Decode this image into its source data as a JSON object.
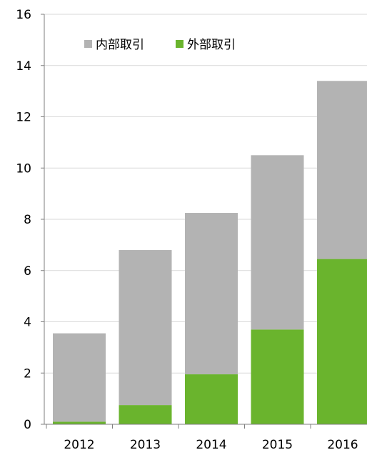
{
  "chart_data": {
    "type": "bar",
    "stacked": true,
    "categories": [
      "2012",
      "2013",
      "2014",
      "2015",
      "2016"
    ],
    "series": [
      {
        "name": "外部取引",
        "values": [
          0.1,
          0.75,
          1.95,
          3.7,
          6.45
        ]
      },
      {
        "name": "内部取引",
        "values": [
          3.45,
          6.05,
          6.3,
          6.8,
          6.95
        ]
      }
    ],
    "ylim": [
      0,
      16
    ],
    "yticks": [
      "0",
      "2",
      "4",
      "6",
      "8",
      "10",
      "12",
      "14",
      "16"
    ],
    "grid": true,
    "legend": "top-left",
    "colors": {
      "外部取引": "#6ab42d",
      "内部取引": "#b3b3b3"
    }
  }
}
